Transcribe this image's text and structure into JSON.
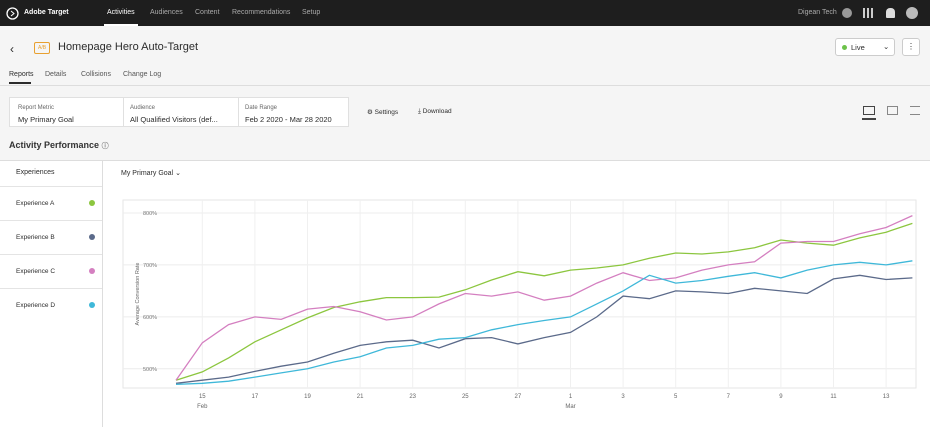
{
  "nav": {
    "brand": "Adobe Target",
    "items": [
      "Activities",
      "Audiences",
      "Content",
      "Recommendations",
      "Setup"
    ],
    "org": "Digean Tech"
  },
  "header": {
    "badge": "A/B",
    "title": "Homepage Hero Auto-Target",
    "status": "Live"
  },
  "tabs": [
    "Reports",
    "Details",
    "Collisions",
    "Change Log"
  ],
  "filters": [
    {
      "label": "Report Metric",
      "value": "My Primary Goal"
    },
    {
      "label": "Audience",
      "value": "All Qualified Visitors (def..."
    },
    {
      "label": "Date Range",
      "value": "Feb 2 2020 - Mar 28 2020"
    }
  ],
  "actions": [
    "Settings",
    "Download"
  ],
  "section_title": "Activity Performance",
  "experiences_header": "Experiences",
  "metric_selector": "My Primary Goal",
  "chart_data": {
    "type": "line",
    "y_label": "Average Conversion Rate",
    "categories": [
      null,
      "15",
      null,
      "17",
      null,
      "19",
      null,
      "21",
      null,
      "23",
      null,
      "25",
      null,
      "27",
      null,
      "1",
      null,
      "3",
      null,
      "5",
      null,
      "7",
      null,
      "9",
      null,
      "11",
      null,
      "13",
      null
    ],
    "months": [
      "Feb",
      "Mar"
    ],
    "ylim": [
      463,
      825
    ],
    "yticks": [
      {
        "value": 500,
        "label": "500%"
      },
      {
        "value": 600,
        "label": "600%"
      },
      {
        "value": 700,
        "label": "700%"
      },
      {
        "value": 800,
        "label": "800%"
      }
    ],
    "series": [
      {
        "name": "Experience A",
        "color": "#8cc63f",
        "values": [
          478,
          494,
          521,
          552,
          575,
          598,
          618,
          629,
          637,
          637,
          638,
          652,
          671,
          687,
          679,
          690,
          694,
          700,
          713,
          723,
          721,
          725,
          733,
          748,
          742,
          738,
          752,
          763,
          780
        ]
      },
      {
        "name": "Experience B",
        "color": "#5b6a8a",
        "values": [
          472,
          478,
          484,
          495,
          505,
          513,
          530,
          545,
          552,
          555,
          540,
          558,
          560,
          548,
          560,
          570,
          600,
          640,
          635,
          650,
          648,
          645,
          655,
          650,
          645,
          673,
          680,
          672,
          675
        ]
      },
      {
        "name": "Experience C",
        "color": "#d47fc0",
        "values": [
          478,
          550,
          585,
          600,
          595,
          615,
          620,
          610,
          594,
          600,
          625,
          645,
          640,
          648,
          632,
          640,
          665,
          685,
          670,
          675,
          690,
          700,
          706,
          742,
          745,
          745,
          760,
          772,
          795
        ]
      },
      {
        "name": "Experience D",
        "color": "#3fb8d9",
        "values": [
          470,
          472,
          476,
          484,
          492,
          500,
          513,
          523,
          540,
          545,
          557,
          560,
          575,
          585,
          593,
          600,
          625,
          650,
          680,
          665,
          670,
          678,
          685,
          675,
          690,
          700,
          705,
          700,
          708
        ]
      }
    ]
  }
}
